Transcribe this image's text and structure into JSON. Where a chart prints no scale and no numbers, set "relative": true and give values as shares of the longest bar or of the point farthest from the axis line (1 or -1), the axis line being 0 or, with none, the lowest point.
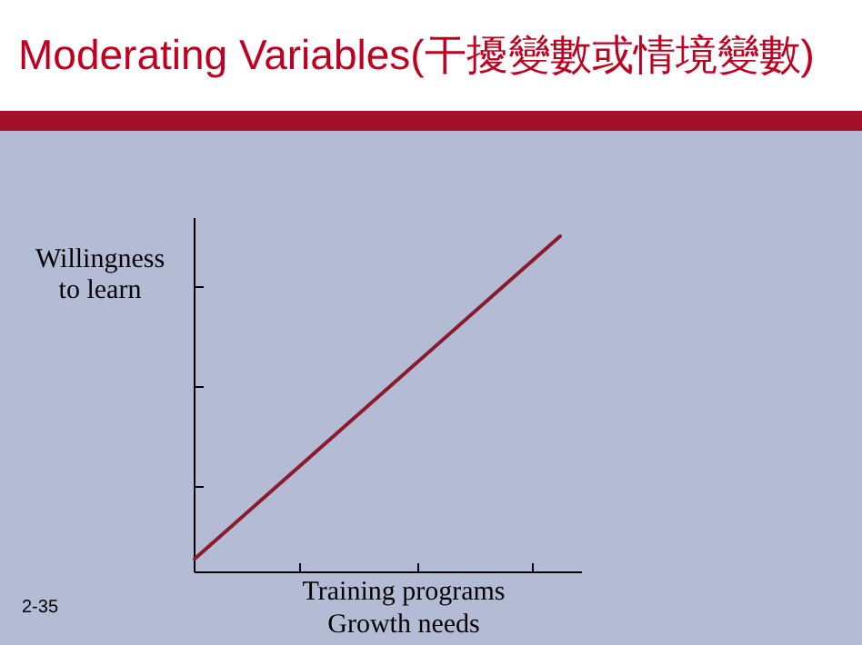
{
  "chart_data": {
    "type": "line",
    "title": "Moderating Variables(干擾變數或情境變數)",
    "xlabel": "Training programs\nGrowth needs",
    "ylabel": "Willingness\nto learn",
    "categories": [
      null,
      null
    ],
    "relative": true,
    "series": [
      {
        "color": "#8b1a2a",
        "values": [
          0.04,
          1
        ]
      }
    ],
    "annotations": [
      "2-35"
    ]
  }
}
